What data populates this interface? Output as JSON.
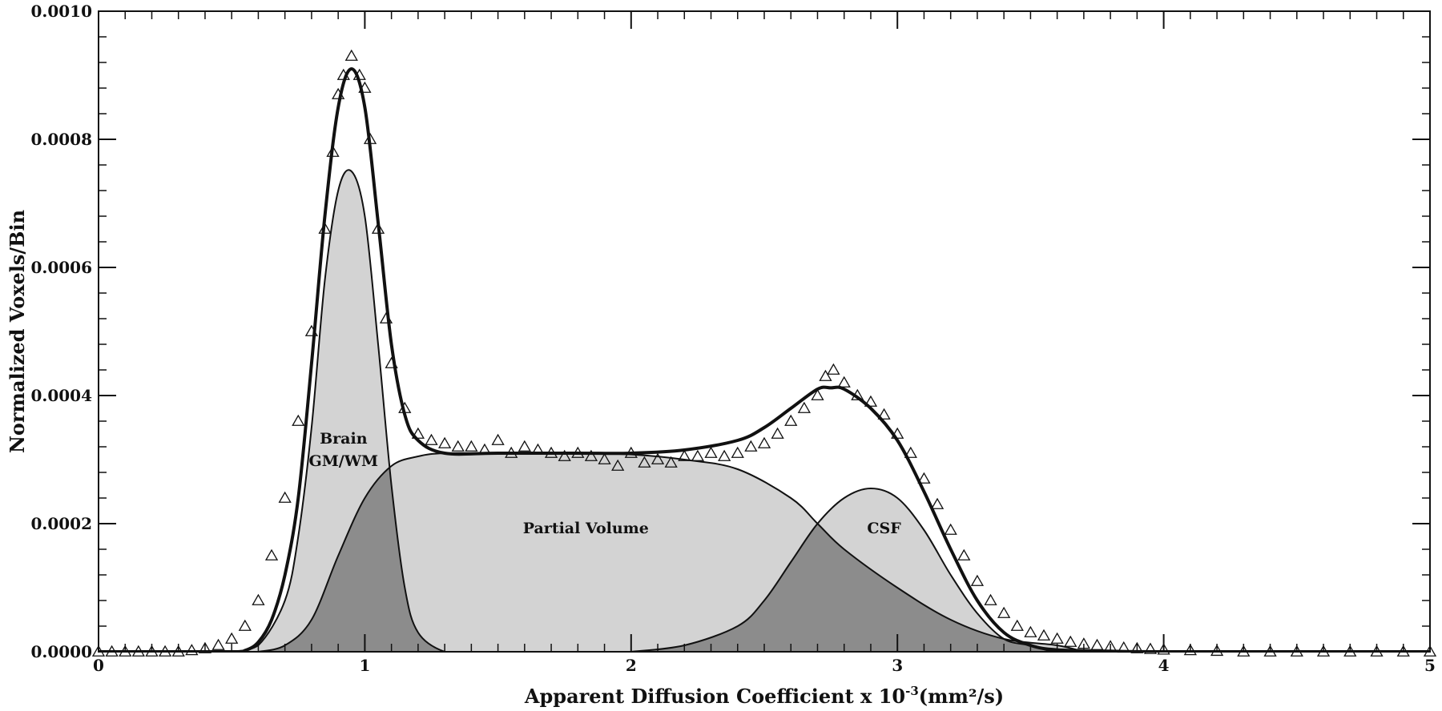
{
  "chart_data": {
    "type": "area",
    "title": "",
    "xlabel": "Apparent Diffusion Coefficient x 10",
    "xlabel_exponent": "-3",
    "xlabel_unit": "(mm²/s)",
    "ylabel": "Normalized Voxels/Bin",
    "xlim": [
      0,
      5
    ],
    "ylim": [
      0,
      0.001
    ],
    "x_ticks": [
      "0",
      "1",
      "2",
      "3",
      "4",
      "5"
    ],
    "y_ticks": [
      "0.0000",
      "0.0002",
      "0.0004",
      "0.0006",
      "0.0008",
      "0.0010"
    ],
    "grid": false,
    "annotations": [
      {
        "text": "Brain",
        "x": 0.92,
        "y": 0.000325
      },
      {
        "text": "GM/WM",
        "x": 0.92,
        "y": 0.00029
      },
      {
        "text": "Partial Volume",
        "x": 1.83,
        "y": 0.000185
      },
      {
        "text": "CSF",
        "x": 2.95,
        "y": 0.000185
      }
    ],
    "series": [
      {
        "style": "filled-curve",
        "x": [
          0.5,
          0.6,
          0.7,
          0.75,
          0.8,
          0.85,
          0.9,
          0.95,
          1.0,
          1.05,
          1.1,
          1.15,
          1.2,
          1.3,
          1.4
        ],
        "y": [
          0.0,
          1e-05,
          8e-05,
          0.00018,
          0.00035,
          0.00058,
          0.00072,
          0.00075,
          0.00068,
          0.00048,
          0.00026,
          0.0001,
          3e-05,
          0.0,
          0.0
        ]
      },
      {
        "style": "filled-curve",
        "x": [
          0.6,
          0.7,
          0.8,
          0.9,
          1.0,
          1.1,
          1.2,
          1.3,
          1.5,
          1.8,
          2.0,
          2.2,
          2.4,
          2.6,
          2.7,
          2.8,
          3.0,
          3.2,
          3.4,
          3.6,
          3.7
        ],
        "y": [
          0.0,
          1e-05,
          5e-05,
          0.00015,
          0.00024,
          0.00029,
          0.000305,
          0.00031,
          0.00031,
          0.00031,
          0.000308,
          0.0003,
          0.000285,
          0.00024,
          0.0002,
          0.00016,
          0.0001,
          5e-05,
          2e-05,
          1e-05,
          0.0
        ]
      },
      {
        "style": "filled-curve",
        "x": [
          2.0,
          2.2,
          2.4,
          2.5,
          2.6,
          2.7,
          2.8,
          2.9,
          3.0,
          3.1,
          3.2,
          3.3,
          3.4,
          3.5,
          3.6,
          3.8
        ],
        "y": [
          0.0,
          1e-05,
          4e-05,
          8e-05,
          0.00014,
          0.0002,
          0.00024,
          0.000255,
          0.00024,
          0.00019,
          0.00012,
          6e-05,
          2e-05,
          1e-05,
          0.0,
          0.0
        ]
      },
      {
        "style": "fit-line",
        "x": [
          0.0,
          0.5,
          0.55,
          0.6,
          0.65,
          0.7,
          0.75,
          0.8,
          0.85,
          0.9,
          0.95,
          1.0,
          1.05,
          1.1,
          1.15,
          1.2,
          1.3,
          1.5,
          1.8,
          2.0,
          2.2,
          2.4,
          2.5,
          2.6,
          2.7,
          2.75,
          2.8,
          2.9,
          3.0,
          3.1,
          3.2,
          3.3,
          3.4,
          3.5,
          3.6,
          3.8,
          4.0,
          5.0
        ],
        "y": [
          0.0,
          0.0,
          2e-06,
          1.5e-05,
          5e-05,
          0.00012,
          0.00024,
          0.00045,
          0.00068,
          0.00085,
          0.00091,
          0.00085,
          0.00067,
          0.00048,
          0.00037,
          0.00033,
          0.00031,
          0.00031,
          0.00031,
          0.00031,
          0.000315,
          0.00033,
          0.00035,
          0.00038,
          0.00041,
          0.000412,
          0.00041,
          0.00038,
          0.00033,
          0.00025,
          0.00016,
          8e-05,
          3e-05,
          1e-05,
          3e-06,
          1e-06,
          0.0,
          0.0
        ]
      },
      {
        "style": "triangle-markers",
        "x": [
          0.0,
          0.05,
          0.1,
          0.15,
          0.2,
          0.25,
          0.3,
          0.35,
          0.4,
          0.45,
          0.5,
          0.55,
          0.6,
          0.65,
          0.7,
          0.75,
          0.8,
          0.85,
          0.88,
          0.9,
          0.92,
          0.95,
          0.98,
          1.0,
          1.02,
          1.05,
          1.08,
          1.1,
          1.15,
          1.2,
          1.25,
          1.3,
          1.35,
          1.4,
          1.45,
          1.5,
          1.55,
          1.6,
          1.65,
          1.7,
          1.75,
          1.8,
          1.85,
          1.9,
          1.95,
          2.0,
          2.05,
          2.1,
          2.15,
          2.2,
          2.25,
          2.3,
          2.35,
          2.4,
          2.45,
          2.5,
          2.55,
          2.6,
          2.65,
          2.7,
          2.73,
          2.76,
          2.8,
          2.85,
          2.9,
          2.95,
          3.0,
          3.05,
          3.1,
          3.15,
          3.2,
          3.25,
          3.3,
          3.35,
          3.4,
          3.45,
          3.5,
          3.55,
          3.6,
          3.65,
          3.7,
          3.75,
          3.8,
          3.85,
          3.9,
          3.95,
          4.0,
          4.1,
          4.2,
          4.3,
          4.4,
          4.5,
          4.6,
          4.7,
          4.8,
          4.9,
          5.0
        ],
        "y": [
          0.0,
          0.0,
          0.0,
          0.0,
          0.0,
          0.0,
          0.0,
          2e-06,
          5e-06,
          1e-05,
          2e-05,
          4e-05,
          8e-05,
          0.00015,
          0.00024,
          0.00036,
          0.0005,
          0.00066,
          0.00078,
          0.00087,
          0.0009,
          0.00093,
          0.0009,
          0.00088,
          0.0008,
          0.00066,
          0.00052,
          0.00045,
          0.00038,
          0.00034,
          0.00033,
          0.000325,
          0.00032,
          0.00032,
          0.000315,
          0.00033,
          0.00031,
          0.00032,
          0.000315,
          0.00031,
          0.000305,
          0.00031,
          0.000305,
          0.0003,
          0.00029,
          0.00031,
          0.000295,
          0.0003,
          0.000295,
          0.000305,
          0.000305,
          0.00031,
          0.000305,
          0.00031,
          0.00032,
          0.000325,
          0.00034,
          0.00036,
          0.00038,
          0.0004,
          0.00043,
          0.00044,
          0.00042,
          0.0004,
          0.00039,
          0.00037,
          0.00034,
          0.00031,
          0.00027,
          0.00023,
          0.00019,
          0.00015,
          0.00011,
          8e-05,
          6e-05,
          4e-05,
          3e-05,
          2.5e-05,
          2e-05,
          1.5e-05,
          1.2e-05,
          1e-05,
          8e-06,
          6e-06,
          5e-06,
          4e-06,
          3e-06,
          2e-06,
          1e-06,
          0.0,
          0.0,
          0.0,
          0.0,
          0.0,
          0.0,
          0.0,
          0.0
        ]
      }
    ],
    "colors": {
      "area_fill": "#d3d3d3",
      "overlap_fill": "#8c8c8c",
      "line": "#111111",
      "marker": "#111111",
      "background": "#ffffff"
    }
  }
}
